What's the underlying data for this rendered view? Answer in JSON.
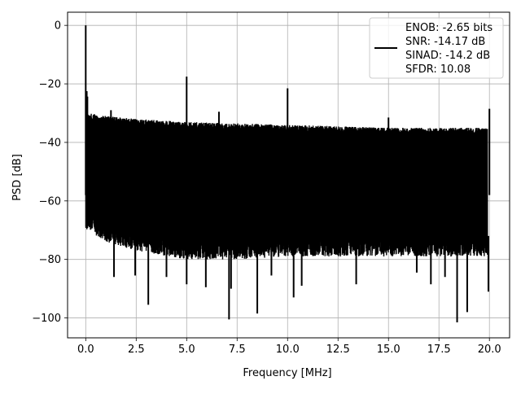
{
  "chart_data": {
    "type": "line",
    "xlabel": "Frequency [MHz]",
    "ylabel": "PSD [dB]",
    "xlim": [
      -0.9,
      21.0
    ],
    "ylim": [
      -106.8,
      4.5
    ],
    "xticks": [
      0.0,
      2.5,
      5.0,
      7.5,
      10.0,
      12.5,
      15.0,
      17.5,
      20.0
    ],
    "xtick_labels": [
      "0.0",
      "2.5",
      "5.0",
      "7.5",
      "10.0",
      "12.5",
      "15.0",
      "17.5",
      "20.0"
    ],
    "yticks": [
      0,
      -20,
      -40,
      -60,
      -80,
      -100
    ],
    "ytick_labels": [
      "0",
      "−20",
      "−40",
      "−60",
      "−80",
      "−100"
    ],
    "grid": true,
    "legend_position": "top-right",
    "legend": [
      "ENOB: -2.65 bits",
      "SNR: -14.17 dB",
      "SINAD: -14.2 dB",
      "SFDR: 10.08"
    ],
    "series": [
      {
        "color": "#000000",
        "noise_band": {
          "x": [
            0.1,
            1.0,
            2.5,
            5.0,
            7.5,
            10.0,
            12.5,
            15.0,
            17.5,
            19.9
          ],
          "upper": [
            -30,
            -31,
            -32,
            -33,
            -33.5,
            -34,
            -34.5,
            -35,
            -35,
            -35
          ],
          "lower": [
            -70,
            -74,
            -77,
            -80,
            -80,
            -79,
            -79,
            -79,
            -79,
            -79
          ]
        },
        "spikes": [
          {
            "x": 0.0,
            "y": 0
          },
          {
            "x": 0.05,
            "y": -22.5
          },
          {
            "x": 1.25,
            "y": -29
          },
          {
            "x": 5.0,
            "y": -17.5
          },
          {
            "x": 6.6,
            "y": -29.5
          },
          {
            "x": 10.0,
            "y": -21.5
          },
          {
            "x": 15.0,
            "y": -31.5
          },
          {
            "x": 20.0,
            "y": -28.5
          }
        ],
        "dips": [
          {
            "x": 1.4,
            "y": -86
          },
          {
            "x": 2.45,
            "y": -85.5
          },
          {
            "x": 3.1,
            "y": -95.5
          },
          {
            "x": 4.0,
            "y": -86
          },
          {
            "x": 5.0,
            "y": -88.5
          },
          {
            "x": 5.95,
            "y": -89.5
          },
          {
            "x": 7.1,
            "y": -100.5
          },
          {
            "x": 7.2,
            "y": -90
          },
          {
            "x": 8.5,
            "y": -98.5
          },
          {
            "x": 9.2,
            "y": -85.5
          },
          {
            "x": 10.3,
            "y": -93
          },
          {
            "x": 10.7,
            "y": -89
          },
          {
            "x": 13.4,
            "y": -88.5
          },
          {
            "x": 16.4,
            "y": -84.5
          },
          {
            "x": 17.1,
            "y": -88.5
          },
          {
            "x": 17.8,
            "y": -86
          },
          {
            "x": 18.4,
            "y": -101.5
          },
          {
            "x": 18.9,
            "y": -98
          },
          {
            "x": 19.95,
            "y": -91
          }
        ]
      }
    ]
  }
}
